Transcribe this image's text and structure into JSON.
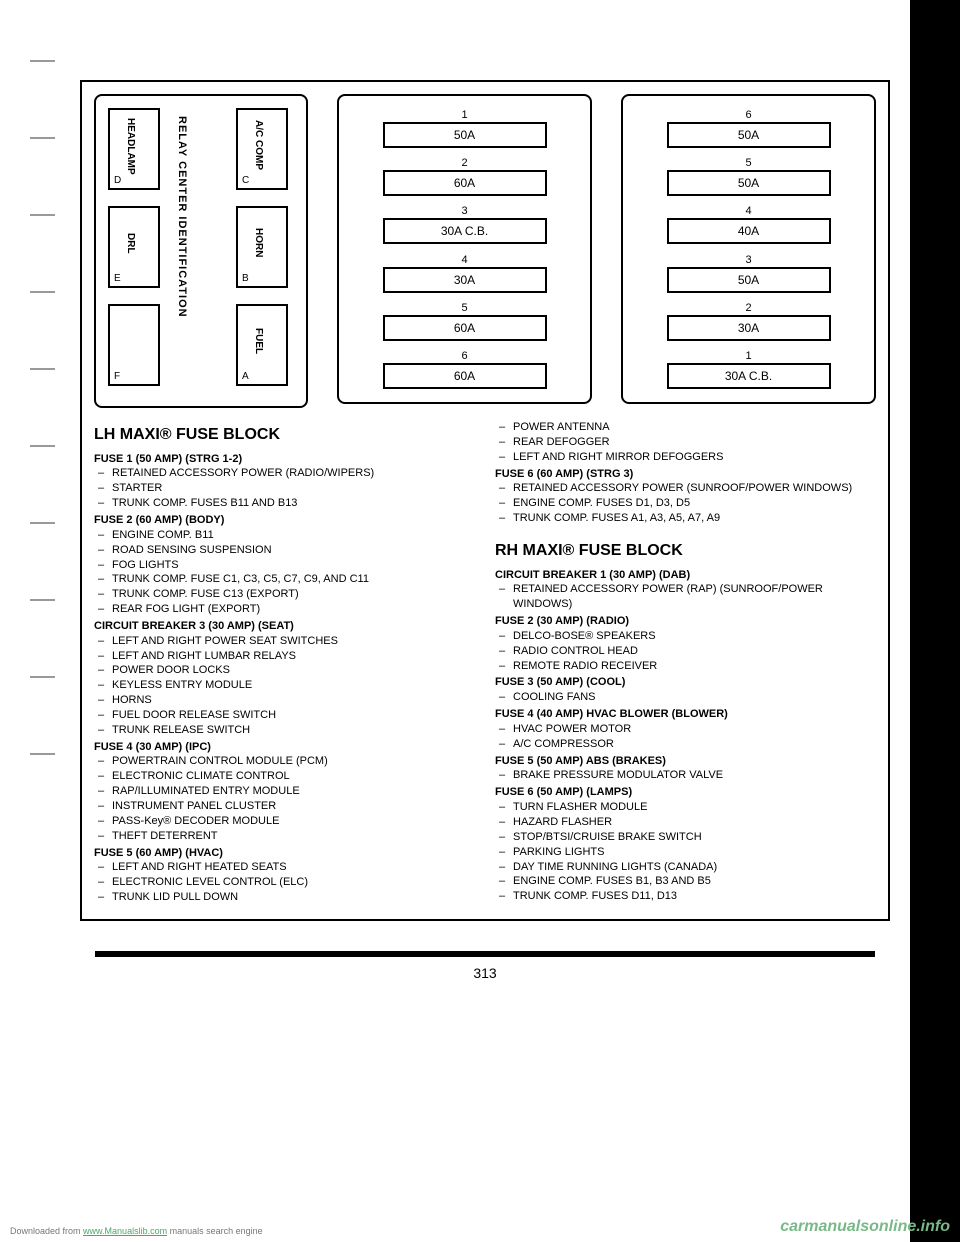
{
  "relay_center": {
    "title": "RELAY CENTER IDENTIFICATION",
    "slots": [
      {
        "label": "HEADLAMP",
        "letter": "D"
      },
      {
        "label": "DRL",
        "letter": "E"
      },
      {
        "label": "",
        "letter": "F"
      },
      {
        "label": "A/C COMP",
        "letter": "C"
      },
      {
        "label": "HORN",
        "letter": "B"
      },
      {
        "label": "FUEL",
        "letter": "A"
      }
    ]
  },
  "lh_panel": {
    "fuses": [
      {
        "num": "1",
        "amp": "50A"
      },
      {
        "num": "2",
        "amp": "60A"
      },
      {
        "num": "3",
        "amp": "30A C.B."
      },
      {
        "num": "4",
        "amp": "30A"
      },
      {
        "num": "5",
        "amp": "60A"
      },
      {
        "num": "6",
        "amp": "60A"
      }
    ]
  },
  "rh_panel": {
    "fuses": [
      {
        "num": "6",
        "amp": "50A"
      },
      {
        "num": "5",
        "amp": "50A"
      },
      {
        "num": "4",
        "amp": "40A"
      },
      {
        "num": "3",
        "amp": "50A"
      },
      {
        "num": "2",
        "amp": "30A"
      },
      {
        "num": "1",
        "amp": "30A C.B."
      }
    ]
  },
  "lh_block": {
    "title": "LH MAXI® FUSE BLOCK",
    "fuses": [
      {
        "heading": "FUSE 1 (50 AMP) (STRG 1-2)",
        "items": [
          "RETAINED ACCESSORY POWER (RADIO/WIPERS)",
          "STARTER",
          "TRUNK COMP. FUSES B11 AND B13"
        ]
      },
      {
        "heading": "FUSE 2 (60 AMP) (BODY)",
        "items": [
          "ENGINE COMP. B11",
          "ROAD SENSING SUSPENSION",
          "FOG LIGHTS",
          "TRUNK COMP. FUSE C1, C3, C5, C7, C9, AND C11",
          "TRUNK COMP. FUSE C13 (EXPORT)",
          "REAR FOG LIGHT (EXPORT)"
        ]
      },
      {
        "heading": "CIRCUIT BREAKER 3 (30 AMP) (SEAT)",
        "items": [
          "LEFT AND RIGHT POWER SEAT SWITCHES",
          "LEFT AND RIGHT LUMBAR RELAYS",
          "POWER DOOR LOCKS",
          "KEYLESS ENTRY MODULE",
          "HORNS",
          "FUEL DOOR RELEASE SWITCH",
          "TRUNK RELEASE SWITCH"
        ]
      },
      {
        "heading": "FUSE 4 (30 AMP) (IPC)",
        "items": [
          "POWERTRAIN CONTROL MODULE (PCM)",
          "ELECTRONIC CLIMATE CONTROL",
          "RAP/ILLUMINATED ENTRY MODULE",
          "INSTRUMENT PANEL CLUSTER",
          "PASS-Key® DECODER MODULE",
          "THEFT DETERRENT"
        ]
      },
      {
        "heading": "FUSE 5 (60 AMP) (HVAC)",
        "items": [
          "LEFT AND RIGHT HEATED SEATS",
          "ELECTRONIC LEVEL CONTROL (ELC)",
          "TRUNK LID PULL DOWN"
        ]
      }
    ],
    "continued_items": [
      "POWER ANTENNA",
      "REAR DEFOGGER",
      "LEFT AND RIGHT MIRROR DEFOGGERS"
    ],
    "fuse6": {
      "heading": "FUSE 6 (60 AMP) (STRG 3)",
      "items": [
        "RETAINED ACCESSORY POWER (SUNROOF/POWER WINDOWS)",
        "ENGINE COMP. FUSES D1, D3, D5",
        "TRUNK COMP. FUSES A1, A3, A5, A7, A9"
      ]
    }
  },
  "rh_block": {
    "title": "RH MAXI® FUSE BLOCK",
    "fuses": [
      {
        "heading": "CIRCUIT BREAKER 1 (30 AMP) (DAB)",
        "items": [
          "RETAINED ACCESSORY POWER (RAP) (SUNROOF/POWER WINDOWS)"
        ]
      },
      {
        "heading": "FUSE 2 (30 AMP) (RADIO)",
        "items": [
          "DELCO-BOSE® SPEAKERS",
          "RADIO CONTROL HEAD",
          "REMOTE RADIO RECEIVER"
        ]
      },
      {
        "heading": "FUSE 3 (50 AMP) (COOL)",
        "items": [
          "COOLING FANS"
        ]
      },
      {
        "heading": "FUSE 4 (40 AMP) HVAC BLOWER (BLOWER)",
        "items": [
          "HVAC POWER MOTOR",
          "A/C COMPRESSOR"
        ]
      },
      {
        "heading": "FUSE 5 (50 AMP) ABS (BRAKES)",
        "items": [
          "BRAKE PRESSURE MODULATOR VALVE"
        ]
      },
      {
        "heading": "FUSE 6 (50 AMP) (LAMPS)",
        "items": [
          "TURN FLASHER MODULE",
          "HAZARD FLASHER",
          "STOP/BTSI/CRUISE BRAKE SWITCH",
          "PARKING LIGHTS",
          "DAY TIME RUNNING LIGHTS (CANADA)",
          "ENGINE COMP. FUSES B1, B3 AND B5",
          "TRUNK COMP. FUSES D11, D13"
        ]
      }
    ]
  },
  "page_number": "313",
  "footer_text": "Downloaded from ",
  "footer_link": "www.Manualslib.com",
  "footer_suffix": " manuals search engine",
  "watermark": "carmanualsonline.info"
}
